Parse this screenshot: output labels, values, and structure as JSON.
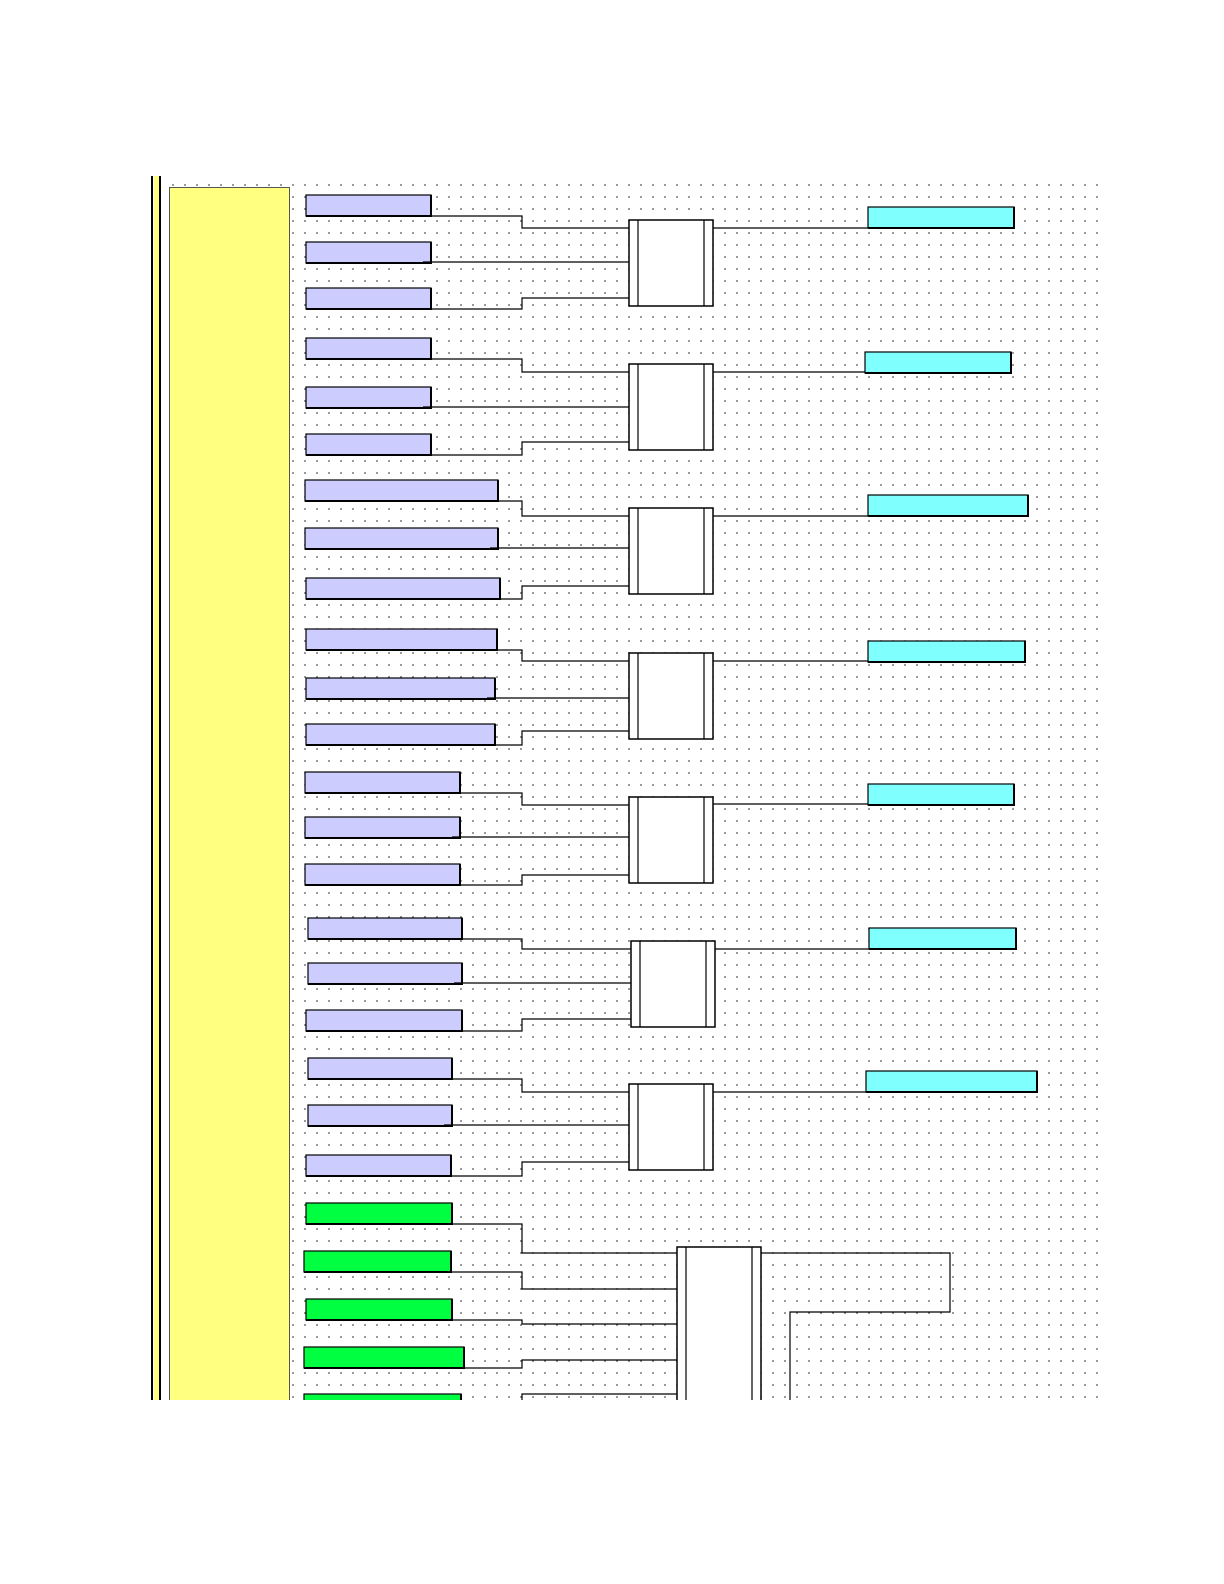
{
  "diagram": {
    "colors": {
      "sidebar": "#ffff80",
      "input_block": "#ccccff",
      "output_block": "#80ffff",
      "bottom_input_block": "#00ff40",
      "function_block": "#ffffff",
      "wire": "#000000"
    },
    "function_groups": [
      {
        "inputs": 3,
        "outputs": 1
      },
      {
        "inputs": 3,
        "outputs": 1
      },
      {
        "inputs": 3,
        "outputs": 1
      },
      {
        "inputs": 3,
        "outputs": 1
      },
      {
        "inputs": 3,
        "outputs": 1
      },
      {
        "inputs": 3,
        "outputs": 1
      },
      {
        "inputs": 3,
        "outputs": 1
      }
    ],
    "bottom_group": {
      "inputs": 5,
      "outputs": 1,
      "feedback_loop": true
    }
  }
}
